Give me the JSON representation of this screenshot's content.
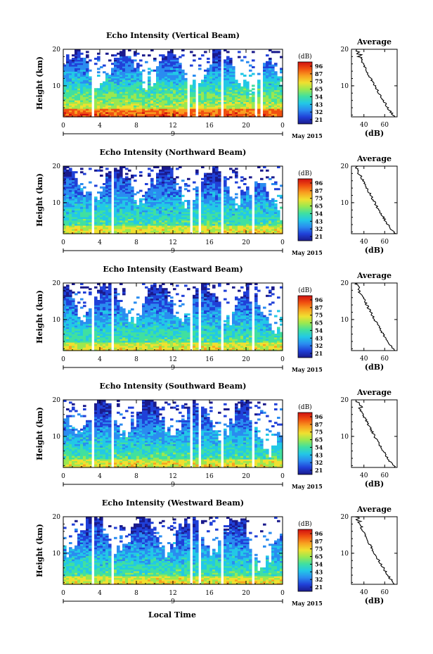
{
  "figure": {
    "xlabel": "Local Time",
    "date_label": "May 2015",
    "colormap": [
      "#1a1a8c",
      "#2040d8",
      "#2a8cf0",
      "#22c8e6",
      "#40e0a0",
      "#9ae850",
      "#f0e030",
      "#f8a020",
      "#f05010",
      "#d01010"
    ]
  },
  "chart_data": [
    {
      "type": "heatmap",
      "title": "Echo Intensity (Vertical Beam)",
      "ylabel": "Height (km)",
      "x_ticks": [
        "0",
        "4",
        "8",
        "12",
        "16",
        "20",
        "0"
      ],
      "y_ticks": [
        "10",
        "20"
      ],
      "xlim": [
        0,
        24
      ],
      "ylim": [
        1.5,
        20
      ],
      "date_day": "9",
      "colorbar_label": "(dB)",
      "colorbar_ticks": [
        "96",
        "87",
        "75",
        "65",
        "54",
        "43",
        "32",
        "21"
      ],
      "profile": {
        "title": "Average",
        "xlabel": "(dB)",
        "x_ticks": [
          "40",
          "60"
        ],
        "y_ticks": [
          "10",
          "20"
        ],
        "xlim": [
          28,
          72
        ]
      },
      "bright_bottom": 1,
      "gap_times": [
        3.3,
        13.8,
        14.6,
        17.3,
        21.2,
        21.6
      ]
    },
    {
      "type": "heatmap",
      "title": "Echo Intensity (Northward Beam)",
      "ylabel": "Height (km)",
      "x_ticks": [
        "0",
        "4",
        "8",
        "12",
        "16",
        "20",
        "0"
      ],
      "y_ticks": [
        "10",
        "20"
      ],
      "xlim": [
        0,
        24
      ],
      "ylim": [
        1.5,
        20
      ],
      "date_day": "9",
      "colorbar_label": "(dB)",
      "colorbar_ticks": [
        "96",
        "87",
        "75",
        "65",
        "54",
        "43",
        "32",
        "21"
      ],
      "profile": {
        "title": "Average",
        "xlabel": "(dB)",
        "x_ticks": [
          "40",
          "60"
        ],
        "y_ticks": [
          "10",
          "20"
        ],
        "xlim": [
          28,
          72
        ]
      },
      "bright_bottom": 0.75,
      "gap_times": [
        3.3,
        5.5,
        14.0,
        14.8,
        17.4,
        20.8
      ]
    },
    {
      "type": "heatmap",
      "title": "Echo Intensity (Eastward Beam)",
      "ylabel": "Height (km)",
      "x_ticks": [
        "0",
        "4",
        "8",
        "12",
        "16",
        "20",
        "0"
      ],
      "y_ticks": [
        "10",
        "20"
      ],
      "xlim": [
        0,
        24
      ],
      "ylim": [
        1.5,
        20
      ],
      "date_day": "9",
      "colorbar_label": "(dB)",
      "colorbar_ticks": [
        "96",
        "87",
        "75",
        "65",
        "54",
        "43",
        "32",
        "21"
      ],
      "profile": {
        "title": "Average",
        "xlabel": "(dB)",
        "x_ticks": [
          "40",
          "60"
        ],
        "y_ticks": [
          "10",
          "20"
        ],
        "xlim": [
          28,
          72
        ]
      },
      "bright_bottom": 0.75,
      "gap_times": [
        3.3,
        5.5,
        14.0,
        14.8,
        17.4,
        20.8
      ]
    },
    {
      "type": "heatmap",
      "title": "Echo Intensity (Southward Beam)",
      "ylabel": "Height (km)",
      "x_ticks": [
        "0",
        "4",
        "8",
        "12",
        "16",
        "20",
        "0"
      ],
      "y_ticks": [
        "10",
        "20"
      ],
      "xlim": [
        0,
        24
      ],
      "ylim": [
        1.5,
        20
      ],
      "date_day": "9",
      "colorbar_label": "(dB)",
      "colorbar_ticks": [
        "96",
        "87",
        "75",
        "65",
        "54",
        "43",
        "32",
        "21"
      ],
      "profile": {
        "title": "Average",
        "xlabel": "(dB)",
        "x_ticks": [
          "40",
          "60"
        ],
        "y_ticks": [
          "10",
          "20"
        ],
        "xlim": [
          28,
          72
        ]
      },
      "bright_bottom": 0.75,
      "gap_times": [
        3.3,
        5.5,
        14.0,
        14.8,
        17.4,
        20.8
      ]
    },
    {
      "type": "heatmap",
      "title": "Echo Intensity (Westward Beam)",
      "ylabel": "Height (km)",
      "x_ticks": [
        "0",
        "4",
        "8",
        "12",
        "16",
        "20",
        "0"
      ],
      "y_ticks": [
        "10",
        "20"
      ],
      "xlim": [
        0,
        24
      ],
      "ylim": [
        1.5,
        20
      ],
      "date_day": "9",
      "colorbar_label": "(dB)",
      "colorbar_ticks": [
        "96",
        "87",
        "75",
        "65",
        "54",
        "43",
        "32",
        "21"
      ],
      "profile": {
        "title": "Average",
        "xlabel": "(dB)",
        "x_ticks": [
          "40",
          "60"
        ],
        "y_ticks": [
          "10",
          "20"
        ],
        "xlim": [
          28,
          72
        ]
      },
      "bright_bottom": 0.75,
      "gap_times": [
        3.3,
        5.5,
        14.0,
        14.8,
        17.4,
        20.8
      ]
    }
  ]
}
